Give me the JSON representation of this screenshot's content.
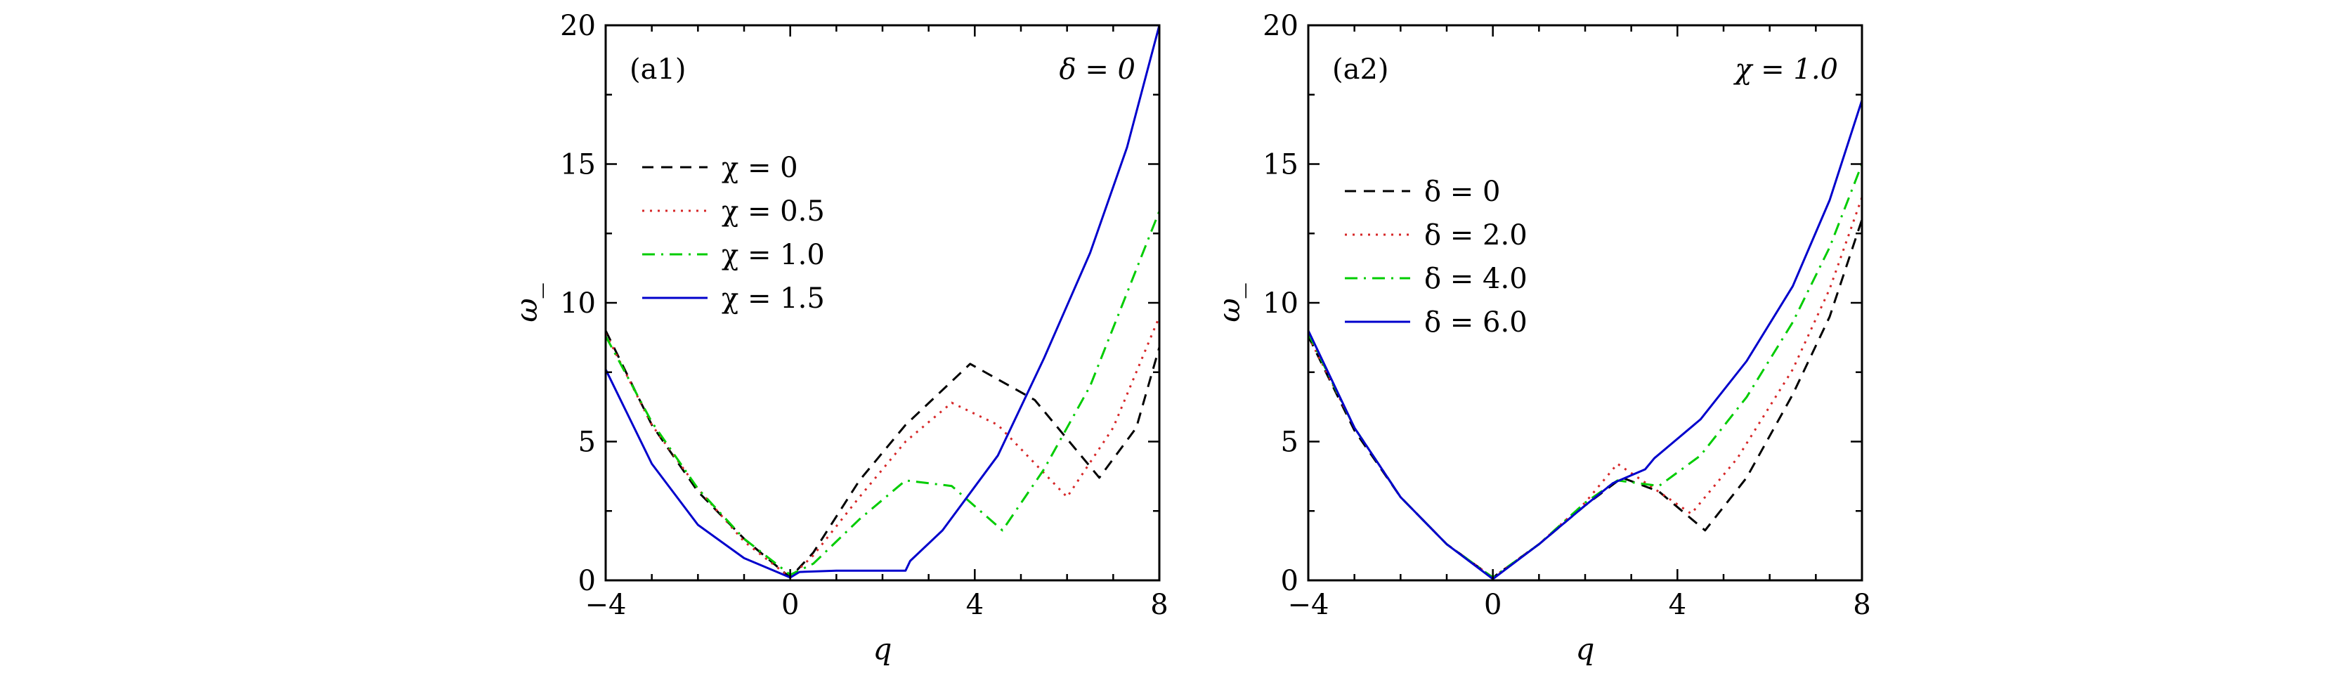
{
  "chart_data": [
    {
      "type": "line",
      "panel_label": "(a1)",
      "annotation": "δ = 0",
      "xlabel": "q",
      "ylabel": "ω_",
      "xlim": [
        -4,
        8
      ],
      "ylim": [
        0,
        20
      ],
      "xticks": [
        -4,
        0,
        4,
        8
      ],
      "yticks": [
        0,
        5,
        10,
        15,
        20
      ],
      "xtick_labels": [
        "−4",
        "0",
        "4",
        "8"
      ],
      "ytick_labels": [
        "0",
        "5",
        "10",
        "15",
        "20"
      ],
      "legend_position": "left",
      "series": [
        {
          "name": "χ = 0",
          "color": "#000000",
          "dash": "dashed",
          "x": [
            -4,
            -3,
            -2,
            -1,
            0,
            0.5,
            1.5,
            2.5,
            3.9,
            5.3,
            6.7,
            7.5,
            8
          ],
          "y": [
            9.0,
            5.6,
            3.2,
            1.5,
            0.1,
            1.0,
            3.6,
            5.6,
            7.8,
            6.5,
            3.7,
            5.5,
            8.4
          ]
        },
        {
          "name": "χ = 0.5",
          "color": "#d62728",
          "dash": "dotted",
          "x": [
            -4,
            -3,
            -2,
            -1,
            0,
            0.5,
            1.5,
            2.5,
            3.5,
            4.5,
            6.0,
            7.0,
            8
          ],
          "y": [
            8.9,
            5.6,
            3.3,
            1.4,
            0.1,
            0.9,
            3.0,
            5.0,
            6.4,
            5.6,
            3.0,
            5.5,
            9.5
          ]
        },
        {
          "name": "χ = 1.0",
          "color": "#00cc00",
          "dash": "dashdot",
          "x": [
            -4,
            -3,
            -2,
            -1,
            0,
            0.5,
            1.5,
            2.5,
            3.5,
            4.6,
            5.5,
            6.5,
            8
          ],
          "y": [
            8.8,
            5.7,
            3.3,
            1.5,
            0.2,
            0.6,
            2.2,
            3.6,
            3.4,
            1.8,
            4.0,
            7.0,
            13.3
          ]
        },
        {
          "name": "χ = 1.5",
          "color": "#0000cc",
          "dash": "solid",
          "x": [
            -4,
            -3,
            -2,
            -1,
            0,
            0.2,
            1.0,
            2.5,
            2.6,
            3.3,
            4.5,
            5.5,
            6.5,
            7.3,
            8
          ],
          "y": [
            7.6,
            4.2,
            2.0,
            0.8,
            0.1,
            0.3,
            0.35,
            0.35,
            0.7,
            1.8,
            4.5,
            8.0,
            11.8,
            15.6,
            20.0
          ]
        }
      ]
    },
    {
      "type": "line",
      "panel_label": "(a2)",
      "annotation": "χ = 1.0",
      "xlabel": "q",
      "ylabel": "ω_",
      "xlim": [
        -4,
        8
      ],
      "ylim": [
        0,
        20
      ],
      "xticks": [
        -4,
        0,
        4,
        8
      ],
      "yticks": [
        0,
        5,
        10,
        15,
        20
      ],
      "xtick_labels": [
        "−4",
        "0",
        "4",
        "8"
      ],
      "ytick_labels": [
        "0",
        "5",
        "10",
        "15",
        "20"
      ],
      "legend_position": "left",
      "series": [
        {
          "name": "δ = 0",
          "color": "#000000",
          "dash": "dashed",
          "x": [
            -4,
            -3,
            -2,
            -1,
            0,
            1,
            2,
            2.8,
            3.6,
            4.6,
            5.5,
            6.5,
            7.3,
            8
          ],
          "y": [
            8.8,
            5.4,
            3.0,
            1.3,
            0.1,
            1.3,
            2.7,
            3.7,
            3.2,
            1.8,
            3.7,
            6.7,
            9.5,
            13.0
          ]
        },
        {
          "name": "δ = 2.0",
          "color": "#d62728",
          "dash": "dotted",
          "x": [
            -4,
            -3,
            -2,
            -1,
            0,
            1,
            2,
            2.7,
            3.5,
            4.3,
            5.3,
            6.5,
            7.3,
            8
          ],
          "y": [
            8.8,
            5.5,
            3.0,
            1.3,
            0.1,
            1.3,
            2.8,
            4.2,
            3.3,
            2.4,
            4.4,
            7.6,
            10.5,
            13.8
          ]
        },
        {
          "name": "δ = 4.0",
          "color": "#00cc00",
          "dash": "dashdot",
          "x": [
            -4,
            -3,
            -2,
            -1,
            0,
            1,
            2,
            2.7,
            3.6,
            4.5,
            5.5,
            6.5,
            7.3,
            8
          ],
          "y": [
            8.9,
            5.5,
            3.0,
            1.3,
            0.1,
            1.3,
            2.8,
            3.6,
            3.4,
            4.5,
            6.6,
            9.3,
            12.0,
            15.0
          ]
        },
        {
          "name": "δ = 6.0",
          "color": "#0000cc",
          "dash": "solid",
          "x": [
            -4,
            -3,
            -2,
            -1,
            0,
            1,
            2,
            2.6,
            3.3,
            3.5,
            4.5,
            5.5,
            6.5,
            7.3,
            8
          ],
          "y": [
            9.0,
            5.5,
            3.0,
            1.3,
            0.05,
            1.3,
            2.7,
            3.5,
            4.0,
            4.4,
            5.8,
            7.9,
            10.6,
            13.7,
            17.3
          ]
        }
      ]
    }
  ]
}
